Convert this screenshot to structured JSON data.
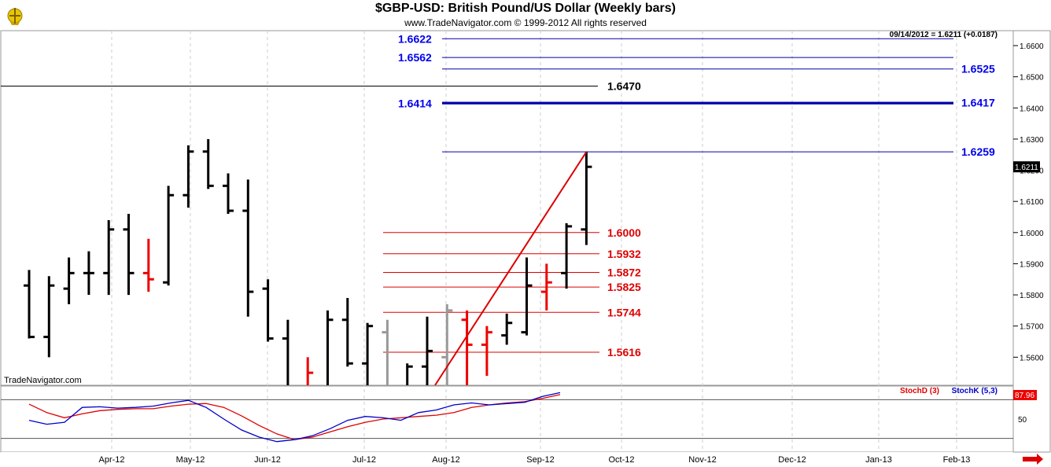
{
  "window": {
    "title": "$GBP-USD:  British Pound/US Dollar  (Weekly bars)",
    "copyright": "www.TradeNavigator.com © 1999-2012 All rights reserved",
    "brand": "TradeNavigator.com"
  },
  "chart_data": [
    {
      "type": "bar",
      "subtype": "ohlc-weekly",
      "symbol": "$GBP-USD",
      "last_info": "09/14/2012 = 1.6211 (+0.0187)",
      "last_price": "1.6211",
      "y_axis": {
        "min": 1.551,
        "max": 1.6648,
        "ticks": [
          "1.5600",
          "1.5700",
          "1.5800",
          "1.5900",
          "1.6000",
          "1.6100",
          "1.6200",
          "1.6300",
          "1.6400",
          "1.6500",
          "1.6600"
        ]
      },
      "x_axis": {
        "ticks": [
          "Apr-12",
          "May-12",
          "Jun-12",
          "Jul-12",
          "Aug-12",
          "Sep-12",
          "Oct-12",
          "Nov-12",
          "Dec-12",
          "Jan-13",
          "Feb-13"
        ]
      },
      "grid": true,
      "bars": [
        {
          "open": 1.583,
          "high": 1.588,
          "low": 1.566,
          "close": 1.5665,
          "color": "black"
        },
        {
          "open": 1.5665,
          "high": 1.586,
          "low": 1.56,
          "close": 1.583,
          "color": "black"
        },
        {
          "open": 1.582,
          "high": 1.592,
          "low": 1.577,
          "close": 1.587,
          "color": "black"
        },
        {
          "open": 1.587,
          "high": 1.594,
          "low": 1.58,
          "close": 1.587,
          "color": "black"
        },
        {
          "open": 1.587,
          "high": 1.604,
          "low": 1.58,
          "close": 1.601,
          "color": "black"
        },
        {
          "open": 1.601,
          "high": 1.606,
          "low": 1.58,
          "close": 1.587,
          "color": "black"
        },
        {
          "open": 1.587,
          "high": 1.598,
          "low": 1.581,
          "close": 1.585,
          "color": "red"
        },
        {
          "open": 1.584,
          "high": 1.615,
          "low": 1.583,
          "close": 1.612,
          "color": "black"
        },
        {
          "open": 1.612,
          "high": 1.628,
          "low": 1.608,
          "close": 1.626,
          "color": "black"
        },
        {
          "open": 1.626,
          "high": 1.63,
          "low": 1.614,
          "close": 1.615,
          "color": "black"
        },
        {
          "open": 1.615,
          "high": 1.619,
          "low": 1.606,
          "close": 1.607,
          "color": "black"
        },
        {
          "open": 1.607,
          "high": 1.617,
          "low": 1.573,
          "close": 1.581,
          "color": "black"
        },
        {
          "open": 1.582,
          "high": 1.585,
          "low": 1.565,
          "close": 1.566,
          "color": "black"
        },
        {
          "open": 1.566,
          "high": 1.572,
          "low": 1.54,
          "close": 1.545,
          "color": "black"
        },
        {
          "open": 1.545,
          "high": 1.56,
          "low": 1.54,
          "close": 1.555,
          "color": "red"
        },
        {
          "open": 1.545,
          "high": 1.575,
          "low": 1.54,
          "close": 1.572,
          "color": "black"
        },
        {
          "open": 1.572,
          "high": 1.579,
          "low": 1.557,
          "close": 1.558,
          "color": "black"
        },
        {
          "open": 1.558,
          "high": 1.571,
          "low": 1.54,
          "close": 1.57,
          "color": "black"
        },
        {
          "open": 1.568,
          "high": 1.572,
          "low": 1.54,
          "close": 1.545,
          "color": "gray"
        },
        {
          "open": 1.545,
          "high": 1.558,
          "low": 1.54,
          "close": 1.557,
          "color": "black"
        },
        {
          "open": 1.557,
          "high": 1.573,
          "low": 1.548,
          "close": 1.562,
          "color": "black"
        },
        {
          "open": 1.56,
          "high": 1.577,
          "low": 1.54,
          "close": 1.575,
          "color": "gray"
        },
        {
          "open": 1.572,
          "high": 1.575,
          "low": 1.548,
          "close": 1.564,
          "color": "red"
        },
        {
          "open": 1.564,
          "high": 1.57,
          "low": 1.554,
          "close": 1.568,
          "color": "red"
        },
        {
          "open": 1.567,
          "high": 1.574,
          "low": 1.564,
          "close": 1.571,
          "color": "black"
        },
        {
          "open": 1.568,
          "high": 1.592,
          "low": 1.567,
          "close": 1.583,
          "color": "black"
        },
        {
          "open": 1.581,
          "high": 1.59,
          "low": 1.575,
          "close": 1.584,
          "color": "red"
        },
        {
          "open": 1.587,
          "high": 1.603,
          "low": 1.582,
          "close": 1.602,
          "color": "black"
        },
        {
          "open": 1.601,
          "high": 1.626,
          "low": 1.596,
          "close": 1.6211,
          "color": "black"
        }
      ],
      "fib_red": [
        {
          "value": 1.6,
          "label": "1.6000"
        },
        {
          "value": 1.5932,
          "label": "1.5932"
        },
        {
          "value": 1.5872,
          "label": "1.5872"
        },
        {
          "value": 1.5825,
          "label": "1.5825"
        },
        {
          "value": 1.5744,
          "label": "1.5744"
        },
        {
          "value": 1.5616,
          "label": "1.5616"
        }
      ],
      "blue_levels": [
        {
          "value": 1.6622,
          "label": "1.6622",
          "side": "left"
        },
        {
          "value": 1.6562,
          "label": "1.6562",
          "side": "left"
        },
        {
          "value": 1.6525,
          "label": "1.6525",
          "side": "right"
        },
        {
          "value": 1.6414,
          "label": "1.6414",
          "side": "left"
        },
        {
          "value": 1.6417,
          "label": "1.6417",
          "side": "right"
        },
        {
          "value": 1.6259,
          "label": "1.6259",
          "side": "right"
        }
      ],
      "black_level": {
        "value": 1.647,
        "label": "1.6470"
      },
      "trendline": {
        "from": {
          "bar": 20,
          "value": 1.551
        },
        "to": {
          "bar": 28,
          "value": 1.6259
        }
      }
    },
    {
      "type": "line",
      "name": "stochastic",
      "series": [
        {
          "name": "StochD (3)",
          "color": "#e00000",
          "values": [
            73,
            60,
            52,
            58,
            63,
            65,
            66,
            66,
            70,
            73,
            74,
            68,
            55,
            40,
            27,
            18,
            22,
            30,
            38,
            45,
            50,
            52,
            54,
            56,
            60,
            68,
            72,
            75,
            77,
            82,
            87.96
          ]
        },
        {
          "name": "StochK (5,3)",
          "color": "#0000cc",
          "values": [
            48,
            42,
            45,
            68,
            69,
            67,
            68,
            70,
            75,
            79,
            68,
            50,
            33,
            22,
            15,
            18,
            24,
            35,
            48,
            54,
            52,
            48,
            60,
            64,
            72,
            75,
            72,
            74,
            76,
            85,
            91
          ]
        }
      ],
      "last_label": "87.96",
      "y_axis": {
        "min": 0,
        "max": 100,
        "ticks": [
          "50"
        ],
        "ref_lines": [
          20,
          80
        ]
      }
    }
  ]
}
